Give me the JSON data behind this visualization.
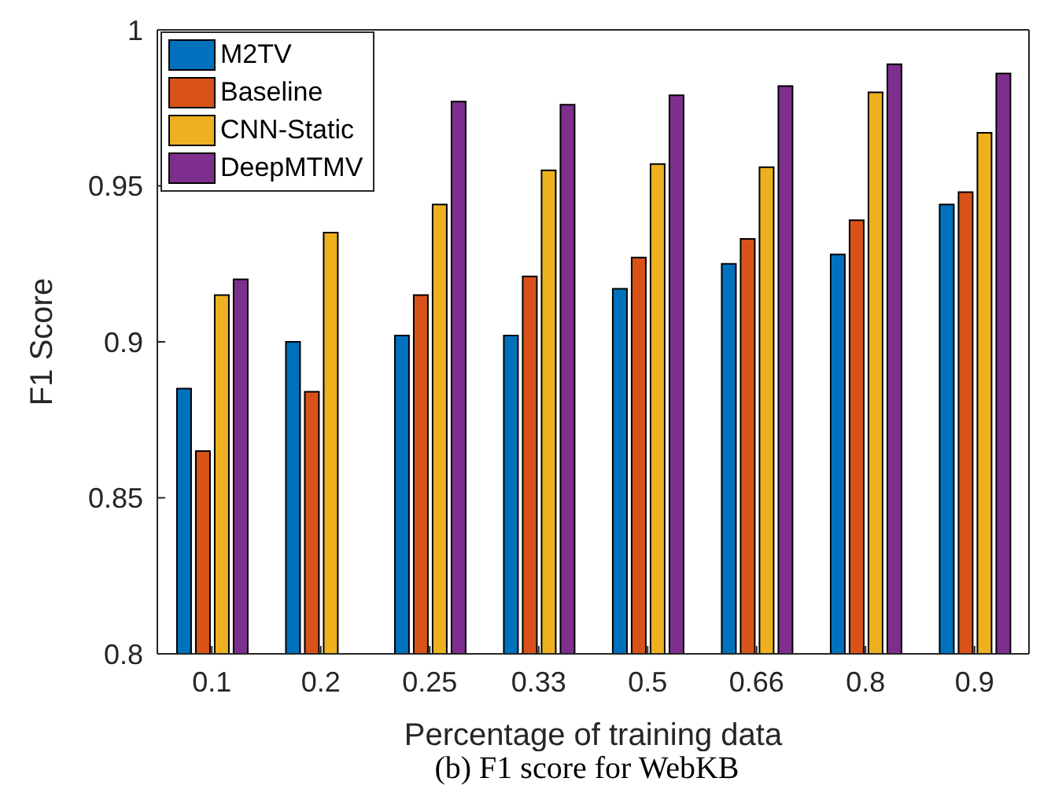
{
  "chart_data": {
    "type": "bar",
    "xlabel": "Percentage of training data",
    "ylabel": "F1 Score",
    "categories": [
      "0.1",
      "0.2",
      "0.25",
      "0.33",
      "0.5",
      "0.66",
      "0.8",
      "0.9"
    ],
    "series": [
      {
        "name": "M2TV",
        "color": "#0072bd",
        "values": [
          0.885,
          0.9,
          0.902,
          0.902,
          0.917,
          0.925,
          0.928,
          0.944
        ]
      },
      {
        "name": "Baseline",
        "color": "#d95319",
        "values": [
          0.865,
          0.884,
          0.915,
          0.921,
          0.927,
          0.933,
          0.939,
          0.948
        ]
      },
      {
        "name": "CNN-Static",
        "color": "#edb120",
        "values": [
          0.915,
          0.935,
          0.944,
          0.955,
          0.957,
          0.956,
          0.98,
          0.967
        ]
      },
      {
        "name": "DeepMTMV",
        "color": "#7e2f8e",
        "values": [
          0.92,
          null,
          0.977,
          0.976,
          0.979,
          0.982,
          0.989,
          0.986
        ]
      }
    ],
    "ylim": [
      0.8,
      1
    ],
    "yticks": [
      0.8,
      0.85,
      0.9,
      0.95,
      1
    ],
    "grid": false,
    "legend": "top left",
    "annotations": [
      "(b) F1 score for WebKB"
    ]
  }
}
